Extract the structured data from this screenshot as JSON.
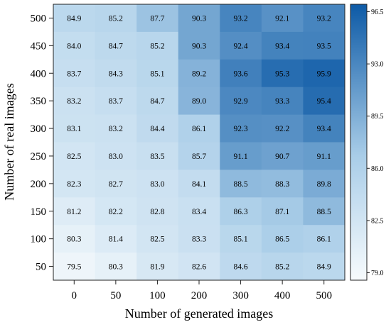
{
  "chart_data": {
    "type": "heatmap",
    "title": "",
    "xlabel": "Number of generated images",
    "ylabel": "Number of real images",
    "x_categories": [
      "0",
      "50",
      "100",
      "200",
      "300",
      "400",
      "500"
    ],
    "y_categories": [
      "500",
      "450",
      "400",
      "350",
      "300",
      "250",
      "200",
      "150",
      "100",
      "50"
    ],
    "values": [
      [
        84.9,
        85.2,
        87.7,
        90.3,
        93.2,
        92.1,
        93.2
      ],
      [
        84.0,
        84.7,
        85.2,
        90.3,
        92.4,
        93.4,
        93.5
      ],
      [
        83.7,
        84.3,
        85.1,
        89.2,
        93.6,
        95.3,
        95.9
      ],
      [
        83.2,
        83.7,
        84.7,
        89.0,
        92.9,
        93.3,
        95.4
      ],
      [
        83.1,
        83.2,
        84.4,
        86.1,
        92.3,
        92.2,
        93.4
      ],
      [
        82.5,
        83.0,
        83.5,
        85.7,
        91.1,
        90.7,
        91.1
      ],
      [
        82.3,
        82.7,
        83.0,
        84.1,
        88.5,
        88.3,
        89.8
      ],
      [
        81.2,
        82.2,
        82.8,
        83.4,
        86.3,
        87.1,
        88.5
      ],
      [
        80.3,
        81.4,
        82.5,
        83.3,
        85.1,
        86.5,
        86.1
      ],
      [
        79.5,
        80.3,
        81.9,
        82.6,
        84.6,
        85.2,
        84.9
      ]
    ],
    "colorbar": {
      "ticks": [
        "96.5",
        "93.0",
        "89.5",
        "86.0",
        "82.5",
        "79.0"
      ],
      "range": [
        78.5,
        97.0
      ],
      "color_low": "#f7fbfd",
      "color_high": "#0d5aa6"
    },
    "grid": false,
    "legend": "colorbar-right"
  }
}
